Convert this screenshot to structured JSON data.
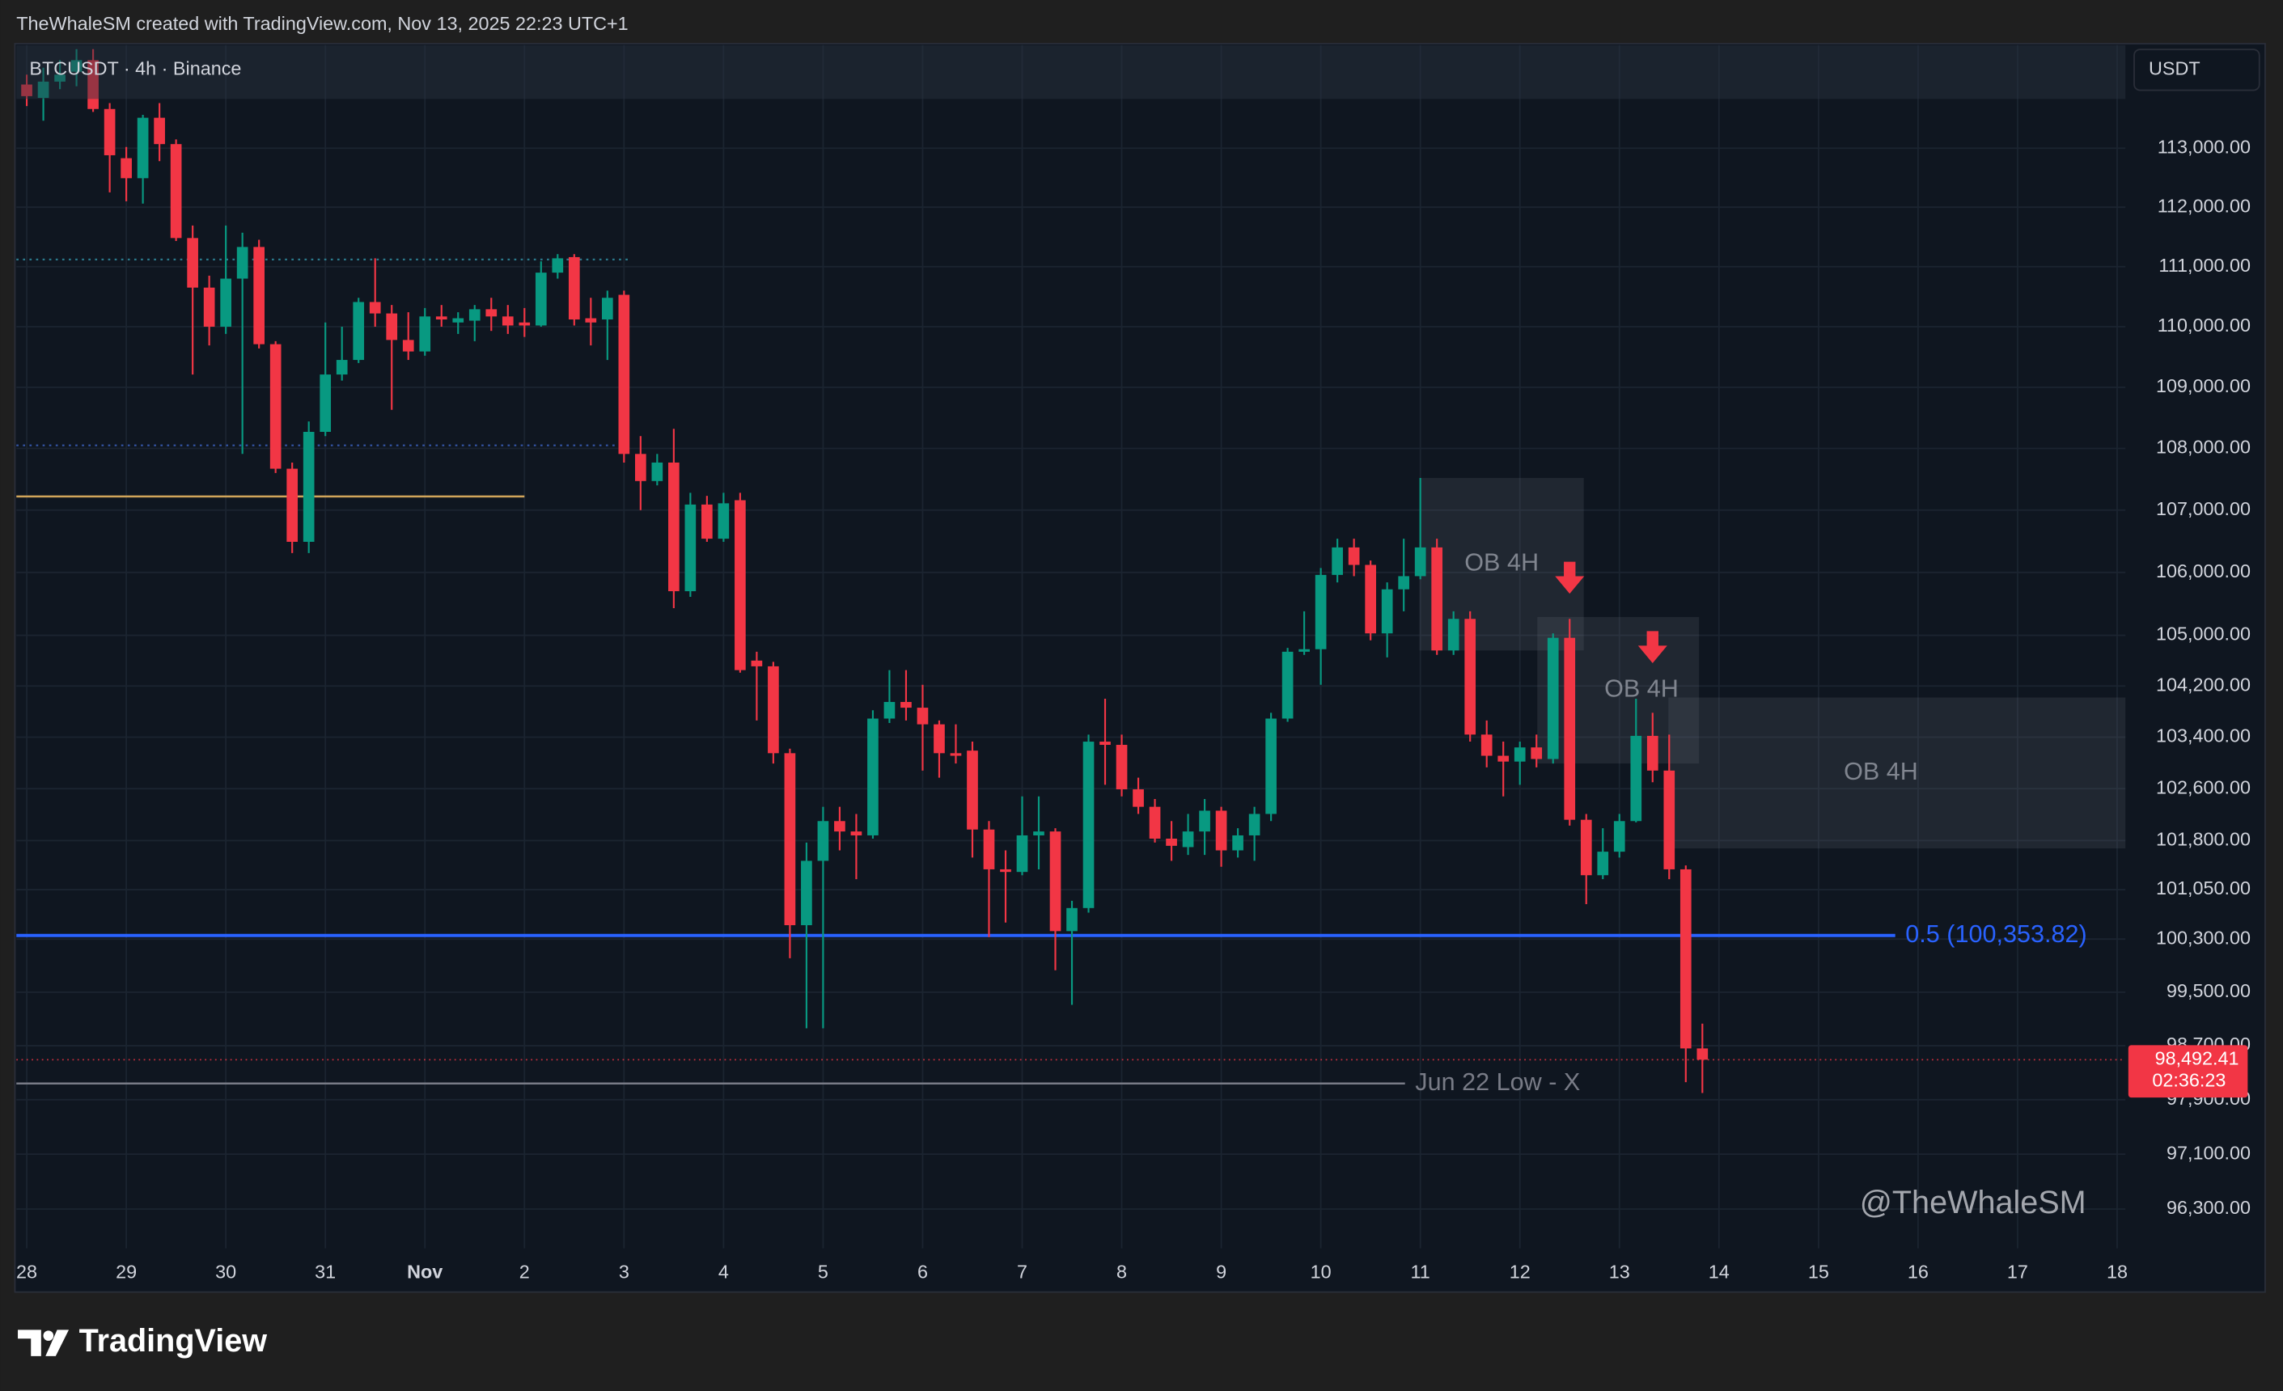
{
  "header": "TheWhaleSM created with TradingView.com, Nov 13, 2025 22:23 UTC+1",
  "brand": "TradingView",
  "chart_data": {
    "type": "candlestick",
    "title": "BTCUSDT · 4h · Binance",
    "currency": "USDT",
    "up_color": "#089981",
    "down_color": "#f23645",
    "log": true,
    "grid": true,
    "x": [
      0,
      4,
      8,
      12,
      16,
      20,
      24,
      28,
      32,
      36,
      40,
      44,
      48,
      52,
      56,
      60,
      64,
      68,
      72,
      76,
      80,
      84,
      88,
      92,
      96,
      100,
      104,
      108,
      112,
      116,
      120,
      124,
      128,
      132,
      136,
      140,
      144,
      148,
      152,
      156,
      160,
      164,
      168,
      172,
      176,
      180,
      184,
      188,
      192,
      196,
      200,
      204,
      208,
      212,
      216,
      220,
      224,
      228,
      232,
      236,
      240,
      244,
      248,
      252,
      256,
      260,
      264,
      268,
      272,
      276,
      280,
      284,
      288,
      292,
      296,
      300,
      304,
      308,
      312,
      316,
      320,
      324,
      328,
      332,
      336,
      340,
      344,
      348,
      352,
      356,
      360,
      364,
      368,
      372,
      376,
      380,
      384,
      388,
      392,
      396,
      400,
      404
    ],
    "open": [
      114090,
      113860,
      114140,
      114310,
      114510,
      113670,
      112830,
      112490,
      113520,
      113070,
      111480,
      110650,
      110000,
      110800,
      111330,
      109710,
      107670,
      106490,
      108270,
      109210,
      109450,
      110410,
      110220,
      109780,
      109590,
      110170,
      110070,
      110100,
      110290,
      110170,
      110070,
      110020,
      110900,
      111160,
      110140,
      110120,
      110530,
      107910,
      107470,
      107770,
      105700,
      107090,
      106540,
      107160,
      104600,
      104510,
      103150,
      100510,
      101490,
      102100,
      101940,
      101880,
      103690,
      103950,
      103860,
      103600,
      103150,
      103190,
      101970,
      101360,
      101320,
      101880,
      101940,
      100420,
      100770,
      103330,
      103280,
      102590,
      102320,
      101830,
      101700,
      101940,
      102260,
      101650,
      101880,
      102210,
      103690,
      104740,
      104780,
      105960,
      106400,
      106120,
      105030,
      105730,
      105940,
      106400,
      104760,
      105260,
      103440,
      103110,
      103020,
      103240,
      103060,
      104960,
      102120,
      101270,
      101630,
      102100,
      103420,
      102880,
      101360,
      98660
    ],
    "high": [
      114260,
      114380,
      114510,
      114700,
      114700,
      113770,
      113020,
      113570,
      113770,
      113150,
      111690,
      110850,
      111690,
      111570,
      111450,
      109760,
      107770,
      108440,
      110070,
      110000,
      110480,
      111140,
      110360,
      110240,
      110310,
      110360,
      110240,
      110360,
      110480,
      110360,
      110310,
      111090,
      111210,
      111210,
      110480,
      110600,
      110600,
      108200,
      107910,
      108320,
      107280,
      107230,
      107280,
      107280,
      104740,
      104580,
      103220,
      101770,
      102320,
      102320,
      102210,
      103820,
      104450,
      104450,
      104220,
      103660,
      103600,
      103330,
      102100,
      101650,
      102480,
      102480,
      101990,
      100880,
      103440,
      104000,
      103440,
      102770,
      102440,
      102100,
      102210,
      102440,
      102320,
      101990,
      102320,
      103780,
      104800,
      105380,
      106070,
      106540,
      106540,
      106190,
      105840,
      106540,
      107520,
      106540,
      105380,
      105380,
      103660,
      103330,
      103330,
      103440,
      105030,
      105260,
      102210,
      101990,
      102210,
      104000,
      103780,
      103440,
      101420,
      99030
    ],
    "low": [
      113720,
      113470,
      114010,
      114060,
      113620,
      112250,
      112100,
      112060,
      112780,
      111430,
      109210,
      109690,
      109880,
      107910,
      109640,
      107600,
      106310,
      106310,
      108200,
      109110,
      109400,
      110000,
      108630,
      109450,
      109520,
      110000,
      109880,
      109760,
      109930,
      109880,
      109830,
      110000,
      110800,
      110020,
      109690,
      109450,
      107770,
      107000,
      107400,
      105430,
      105610,
      106490,
      106490,
      104410,
      103660,
      102990,
      100010,
      98960,
      98960,
      101650,
      101210,
      101830,
      103620,
      103660,
      102880,
      102770,
      102990,
      101540,
      100330,
      100550,
      101270,
      101360,
      99830,
      99310,
      100700,
      102660,
      102480,
      102210,
      101770,
      101490,
      101580,
      101580,
      101400,
      101540,
      101490,
      102100,
      103640,
      104690,
      104220,
      105840,
      105940,
      104920,
      104650,
      105380,
      105890,
      104690,
      104690,
      103330,
      102930,
      102480,
      102660,
      102930,
      102990,
      102030,
      100830,
      101210,
      101540,
      102080,
      102700,
      101210,
      98160,
      98000
    ],
    "close": [
      113890,
      114140,
      114260,
      114510,
      113670,
      112880,
      112490,
      113520,
      113070,
      111480,
      110650,
      110000,
      110800,
      111330,
      109710,
      107670,
      106490,
      108270,
      109210,
      109450,
      110410,
      110220,
      109780,
      109590,
      110170,
      110120,
      110140,
      110290,
      110170,
      110020,
      110020,
      110900,
      111140,
      110120,
      110070,
      110480,
      107910,
      107470,
      107770,
      105700,
      107090,
      106540,
      107110,
      104450,
      104510,
      103150,
      100510,
      101490,
      102100,
      101940,
      101880,
      103690,
      103950,
      103860,
      103600,
      103150,
      103110,
      101970,
      101360,
      101320,
      101880,
      101940,
      100420,
      100770,
      103330,
      103280,
      102590,
      102320,
      101830,
      101720,
      101940,
      102260,
      101650,
      101880,
      102210,
      103690,
      104740,
      104780,
      105960,
      106400,
      106120,
      105030,
      105730,
      105940,
      106400,
      104760,
      105260,
      103440,
      103110,
      103020,
      103240,
      103060,
      104960,
      102120,
      101270,
      101630,
      102100,
      103420,
      102880,
      101360,
      98660,
      98492.41
    ],
    "xlim": [
      -2.5,
      506
    ],
    "xticks": [
      {
        "value": 0,
        "label": "28"
      },
      {
        "value": 24,
        "label": "29"
      },
      {
        "value": 48,
        "label": "30"
      },
      {
        "value": 72,
        "label": "31"
      },
      {
        "value": 96,
        "label": "Nov"
      },
      {
        "value": 120,
        "label": "2"
      },
      {
        "value": 144,
        "label": "3"
      },
      {
        "value": 168,
        "label": "4"
      },
      {
        "value": 192,
        "label": "5"
      },
      {
        "value": 216,
        "label": "6"
      },
      {
        "value": 240,
        "label": "7"
      },
      {
        "value": 264,
        "label": "8"
      },
      {
        "value": 288,
        "label": "9"
      },
      {
        "value": 312,
        "label": "10"
      },
      {
        "value": 336,
        "label": "11"
      },
      {
        "value": 360,
        "label": "12"
      },
      {
        "value": 384,
        "label": "13"
      },
      {
        "value": 408,
        "label": "14"
      },
      {
        "value": 432,
        "label": "15"
      },
      {
        "value": 456,
        "label": "16"
      },
      {
        "value": 480,
        "label": "17"
      },
      {
        "value": 504,
        "label": "18"
      }
    ],
    "ylim": [
      95730,
      114770
    ],
    "yticks": [
      {
        "value": 113000,
        "label": "113,000.00"
      },
      {
        "value": 112000,
        "label": "112,000.00"
      },
      {
        "value": 111000,
        "label": "111,000.00"
      },
      {
        "value": 110000,
        "label": "110,000.00"
      },
      {
        "value": 109000,
        "label": "109,000.00"
      },
      {
        "value": 108000,
        "label": "108,000.00"
      },
      {
        "value": 107000,
        "label": "107,000.00"
      },
      {
        "value": 106000,
        "label": "106,000.00"
      },
      {
        "value": 105000,
        "label": "105,000.00"
      },
      {
        "value": 104200,
        "label": "104,200.00"
      },
      {
        "value": 103400,
        "label": "103,400.00"
      },
      {
        "value": 102600,
        "label": "102,600.00"
      },
      {
        "value": 101800,
        "label": "101,800.00"
      },
      {
        "value": 101050,
        "label": "101,050.00"
      },
      {
        "value": 100300,
        "label": "100,300.00"
      },
      {
        "value": 99500,
        "label": "99,500.00"
      },
      {
        "value": 98700,
        "label": "98,700.00"
      },
      {
        "value": 97900,
        "label": "97,900.00"
      },
      {
        "value": 97100,
        "label": "97,100.00"
      },
      {
        "value": 96300,
        "label": "96,300.00"
      }
    ],
    "levels": [
      {
        "price": 111120,
        "x": [
          -2.5,
          145
        ],
        "color": "#2b7a8c",
        "style": "dotted"
      },
      {
        "price": 108050,
        "x": [
          -2.5,
          143
        ],
        "color": "#3556a8",
        "style": "dotted"
      },
      {
        "price": 107220,
        "x": [
          -2.5,
          120
        ],
        "color": "#d1a55a",
        "style": "solid"
      },
      {
        "price": 100353.82,
        "x": [
          -2.5,
          450.5
        ],
        "color": "#2962ff",
        "style": "solid",
        "label": "0.5 (100,353.82)"
      },
      {
        "price": 98140,
        "x": [
          -2.5,
          332.3
        ],
        "color": "#787b86",
        "style": "solid",
        "label": "Jun 22 Low - X"
      }
    ],
    "zones": [
      {
        "label": "OB 4H",
        "x": [
          335.8,
          375.4
        ],
        "top": 107520,
        "bottom": 104760
      },
      {
        "label": "OB 4H",
        "x": [
          364.2,
          403.2
        ],
        "top": 105290,
        "bottom": 102990
      },
      {
        "label": "OB 4H",
        "x": [
          395.8,
          506
        ],
        "top": 104020,
        "bottom": 101680
      }
    ],
    "arrows": [
      {
        "x": 372,
        "price": 105660,
        "color": "#f23645"
      },
      {
        "x": 392,
        "price": 104560,
        "color": "#f23645"
      }
    ],
    "price_label": "98,492.41",
    "countdown": "02:36:23",
    "watermark": "@TheWhaleSM"
  }
}
